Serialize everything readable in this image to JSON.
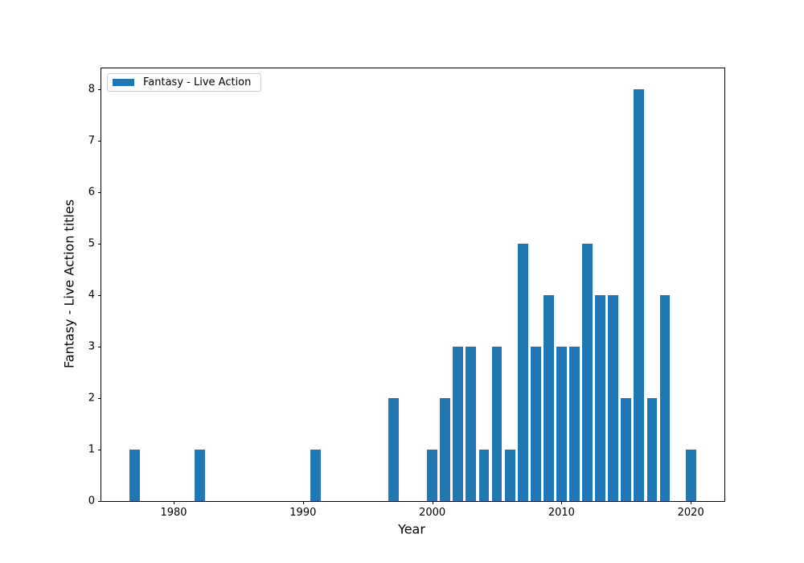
{
  "chart_data": {
    "type": "bar",
    "title": "",
    "xlabel": "Year",
    "ylabel": "Fantasy - Live Action titles",
    "legend_label": "Fantasy - Live Action",
    "legend_position": "upper left",
    "bar_color": "#1f77b4",
    "categories": [
      1977,
      1982,
      1991,
      1997,
      2000,
      2001,
      2002,
      2003,
      2004,
      2005,
      2006,
      2007,
      2008,
      2009,
      2010,
      2011,
      2012,
      2013,
      2014,
      2015,
      2016,
      2017,
      2018,
      2020
    ],
    "values": [
      1,
      1,
      1,
      2,
      1,
      2,
      3,
      3,
      1,
      3,
      1,
      5,
      3,
      4,
      3,
      3,
      5,
      4,
      4,
      2,
      8,
      2,
      4,
      1
    ],
    "bar_width": 0.8,
    "xlim": [
      1974.4,
      2022.6
    ],
    "ylim": [
      0,
      8.4
    ],
    "xticks": [
      1980,
      1990,
      2000,
      2010,
      2020
    ],
    "yticks": [
      0,
      1,
      2,
      3,
      4,
      5,
      6,
      7,
      8
    ],
    "grid": false
  }
}
